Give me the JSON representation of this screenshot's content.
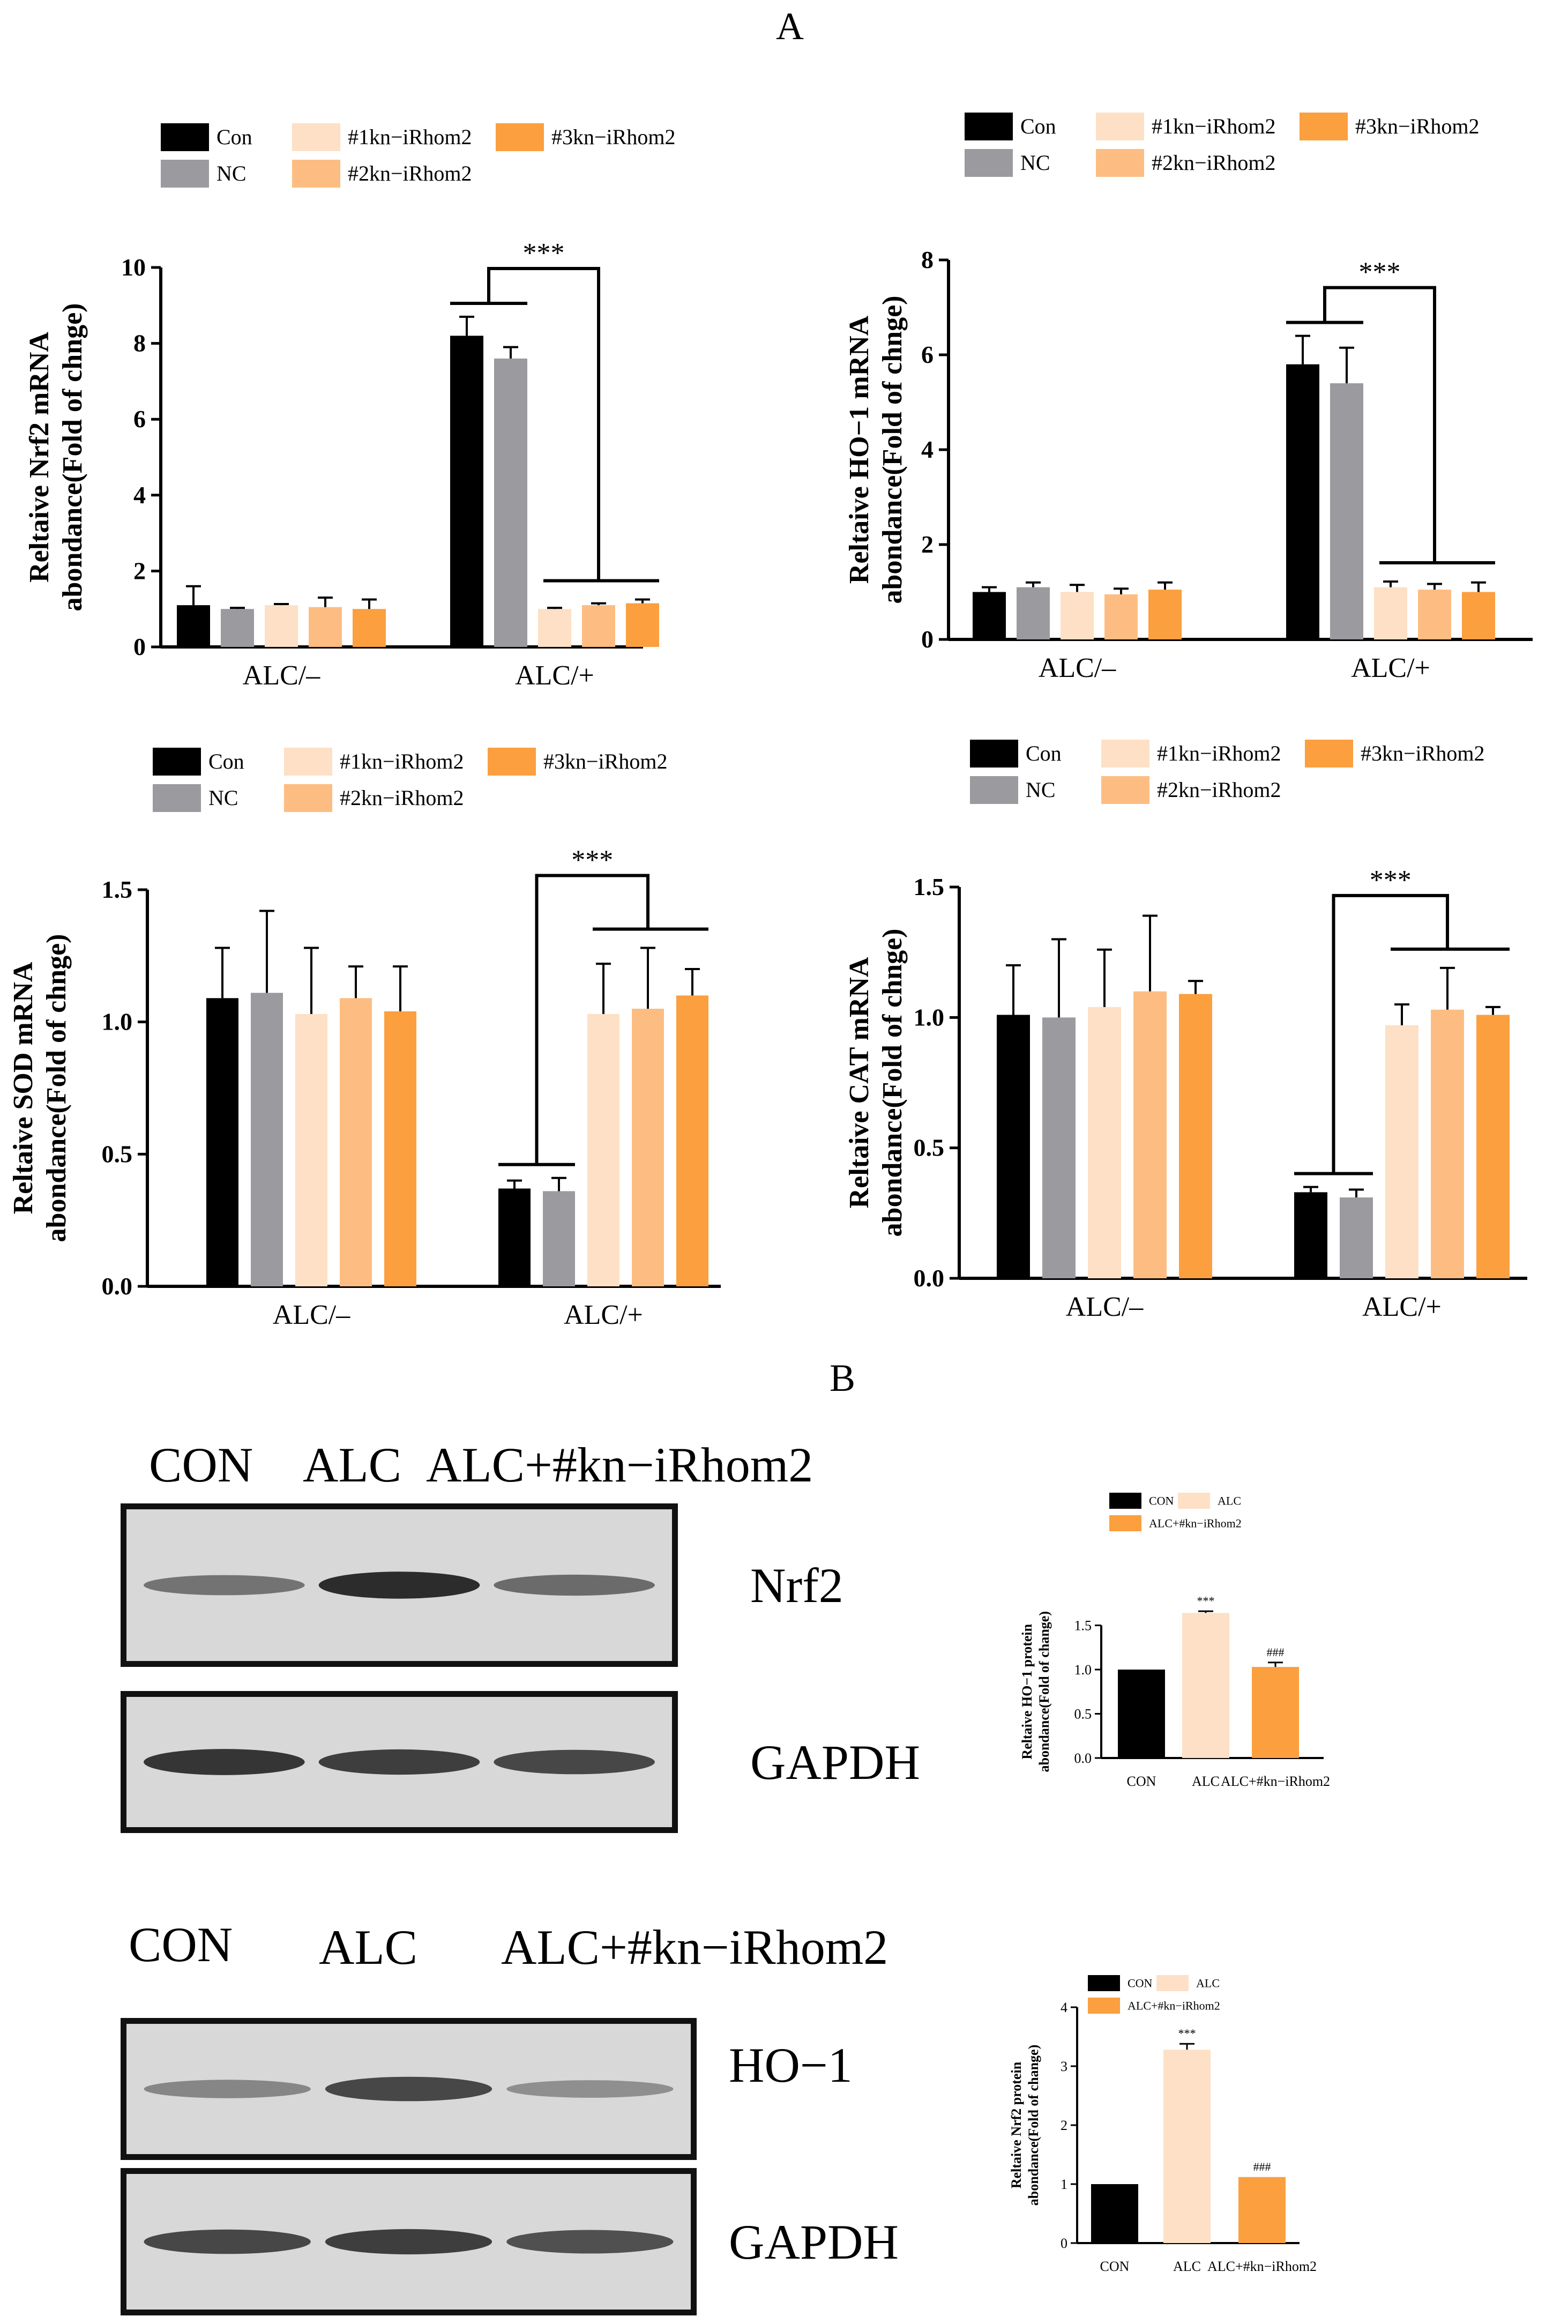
{
  "panel_labels": {
    "a": "A",
    "b": "B"
  },
  "blots": [
    {
      "lane_labels": [
        "CON",
        "ALC",
        "ALC+#kn−iRhom2"
      ],
      "bands": [
        {
          "protein": "Nrf2",
          "intensities": [
            0.55,
            0.95,
            0.6
          ]
        },
        {
          "protein": "GAPDH",
          "intensities": [
            0.9,
            0.85,
            0.8
          ]
        }
      ]
    },
    {
      "lane_labels": [
        "CON",
        "ALC",
        "ALC+#kn−iRhom2"
      ],
      "bands": [
        {
          "protein": "HO−1",
          "intensities": [
            0.45,
            0.8,
            0.4
          ]
        },
        {
          "protein": "GAPDH",
          "intensities": [
            0.8,
            0.85,
            0.75
          ]
        }
      ]
    }
  ],
  "colors": {
    "Con": "#000000",
    "NC": "#9b9b9f",
    "#1kn−iRhom2": "#fde0c5",
    "#2kn−iRhom2": "#fdbd82",
    "#3kn−iRhom2": "#fb9f3f",
    "CON": "#000000",
    "ALC": "#fde0c5",
    "ALC+#kn−iRhom2": "#fb9f3f"
  },
  "chart_data": [
    {
      "type": "bar",
      "ylabel": [
        "Reltaive Nrf2 mRNA",
        "abondance(Fold of chnge)"
      ],
      "categories": [
        "ALC/–",
        "ALC/+"
      ],
      "legend": [
        "Con",
        "NC",
        "#1kn−iRhom2",
        "#2kn−iRhom2",
        "#3kn−iRhom2"
      ],
      "ylim": [
        0,
        10
      ],
      "yticks": [
        "0",
        "2",
        "4",
        "6",
        "8",
        "10"
      ],
      "series": [
        {
          "name": "Con",
          "values": [
            1.1,
            8.2
          ],
          "errors": [
            0.5,
            0.5
          ]
        },
        {
          "name": "NC",
          "values": [
            1.0,
            7.6
          ],
          "errors": [
            0.03,
            0.3
          ]
        },
        {
          "name": "#1kn−iRhom2",
          "values": [
            1.1,
            1.0
          ],
          "errors": [
            0.03,
            0.03
          ]
        },
        {
          "name": "#2kn−iRhom2",
          "values": [
            1.05,
            1.1
          ],
          "errors": [
            0.25,
            0.05
          ]
        },
        {
          "name": "#3kn−iRhom2",
          "values": [
            1.0,
            1.15
          ],
          "errors": [
            0.25,
            0.1
          ]
        }
      ],
      "significance": "***"
    },
    {
      "type": "bar",
      "ylabel": [
        "Reltaive HO−1 mRNA",
        "abondance(Fold of chnge)"
      ],
      "categories": [
        "ALC/–",
        "ALC/+"
      ],
      "legend": [
        "Con",
        "NC",
        "#1kn−iRhom2",
        "#2kn−iRhom2",
        "#3kn−iRhom2"
      ],
      "ylim": [
        0,
        8
      ],
      "yticks": [
        "0",
        "2",
        "4",
        "6",
        "8"
      ],
      "series": [
        {
          "name": "Con",
          "values": [
            1.0,
            5.8
          ],
          "errors": [
            0.1,
            0.6
          ]
        },
        {
          "name": "NC",
          "values": [
            1.1,
            5.4
          ],
          "errors": [
            0.1,
            0.75
          ]
        },
        {
          "name": "#1kn−iRhom2",
          "values": [
            1.0,
            1.1
          ],
          "errors": [
            0.15,
            0.12
          ]
        },
        {
          "name": "#2kn−iRhom2",
          "values": [
            0.95,
            1.05
          ],
          "errors": [
            0.12,
            0.12
          ]
        },
        {
          "name": "#3kn−iRhom2",
          "values": [
            1.05,
            1.0
          ],
          "errors": [
            0.15,
            0.2
          ]
        }
      ],
      "significance": "***"
    },
    {
      "type": "bar",
      "ylabel": [
        "Reltaive SOD mRNA",
        "abondance(Fold of chnge)"
      ],
      "categories": [
        "ALC/–",
        "ALC/+"
      ],
      "legend": [
        "Con",
        "NC",
        "#1kn−iRhom2",
        "#2kn−iRhom2",
        "#3kn−iRhom2"
      ],
      "ylim": [
        0,
        1.5
      ],
      "yticks": [
        "0.0",
        "0.5",
        "1.0",
        "1.5"
      ],
      "series": [
        {
          "name": "Con",
          "values": [
            1.09,
            0.37
          ],
          "errors": [
            0.19,
            0.03
          ]
        },
        {
          "name": "NC",
          "values": [
            1.11,
            0.36
          ],
          "errors": [
            0.31,
            0.05
          ]
        },
        {
          "name": "#1kn−iRhom2",
          "values": [
            1.03,
            1.03
          ],
          "errors": [
            0.25,
            0.19
          ]
        },
        {
          "name": "#2kn−iRhom2",
          "values": [
            1.09,
            1.05
          ],
          "errors": [
            0.12,
            0.23
          ]
        },
        {
          "name": "#3kn−iRhom2",
          "values": [
            1.04,
            1.1
          ],
          "errors": [
            0.17,
            0.1
          ]
        }
      ],
      "significance": "***"
    },
    {
      "type": "bar",
      "ylabel": [
        "Reltaive CAT mRNA",
        "abondance(Fold of chnge)"
      ],
      "categories": [
        "ALC/–",
        "ALC/+"
      ],
      "legend": [
        "Con",
        "NC",
        "#1kn−iRhom2",
        "#2kn−iRhom2",
        "#3kn−iRhom2"
      ],
      "ylim": [
        0,
        1.5
      ],
      "yticks": [
        "0.0",
        "0.5",
        "1.0",
        "1.5"
      ],
      "series": [
        {
          "name": "Con",
          "values": [
            1.01,
            0.33
          ],
          "errors": [
            0.19,
            0.02
          ]
        },
        {
          "name": "NC",
          "values": [
            1.0,
            0.31
          ],
          "errors": [
            0.3,
            0.03
          ]
        },
        {
          "name": "#1kn−iRhom2",
          "values": [
            1.04,
            0.97
          ],
          "errors": [
            0.22,
            0.08
          ]
        },
        {
          "name": "#2kn−iRhom2",
          "values": [
            1.1,
            1.03
          ],
          "errors": [
            0.29,
            0.16
          ]
        },
        {
          "name": "#3kn−iRhom2",
          "values": [
            1.09,
            1.01
          ],
          "errors": [
            0.05,
            0.03
          ]
        }
      ],
      "significance": "***"
    },
    {
      "type": "bar",
      "ylabel": [
        "Reltaive HO−1 protein",
        "abondance(Fold of change)"
      ],
      "categories": [
        "CON",
        "ALC",
        "ALC+#kn−iRhom2"
      ],
      "legend": [
        "CON",
        "ALC",
        "ALC+#kn−iRhom2"
      ],
      "ylim": [
        0,
        2.0
      ],
      "yticks": [
        "0.0",
        "0.5",
        "1.0",
        "1.5"
      ],
      "values": [
        1.0,
        1.64,
        1.03
      ],
      "errors": [
        0,
        0.02,
        0.05
      ],
      "annotations": [
        "",
        "***",
        "###"
      ]
    },
    {
      "type": "bar",
      "ylabel": [
        "Reltaive Nrf2 protein",
        "abondance(Fold of change)"
      ],
      "categories": [
        "CON",
        "ALC",
        "ALC+#kn−iRhom2"
      ],
      "legend": [
        "CON",
        "ALC",
        "ALC+#kn−iRhom2"
      ],
      "ylim": [
        0,
        4
      ],
      "yticks": [
        "0",
        "1",
        "2",
        "3",
        "4"
      ],
      "values": [
        1.0,
        3.28,
        1.12
      ],
      "errors": [
        0,
        0.1,
        0
      ],
      "annotations": [
        "",
        "***",
        "###"
      ]
    }
  ]
}
